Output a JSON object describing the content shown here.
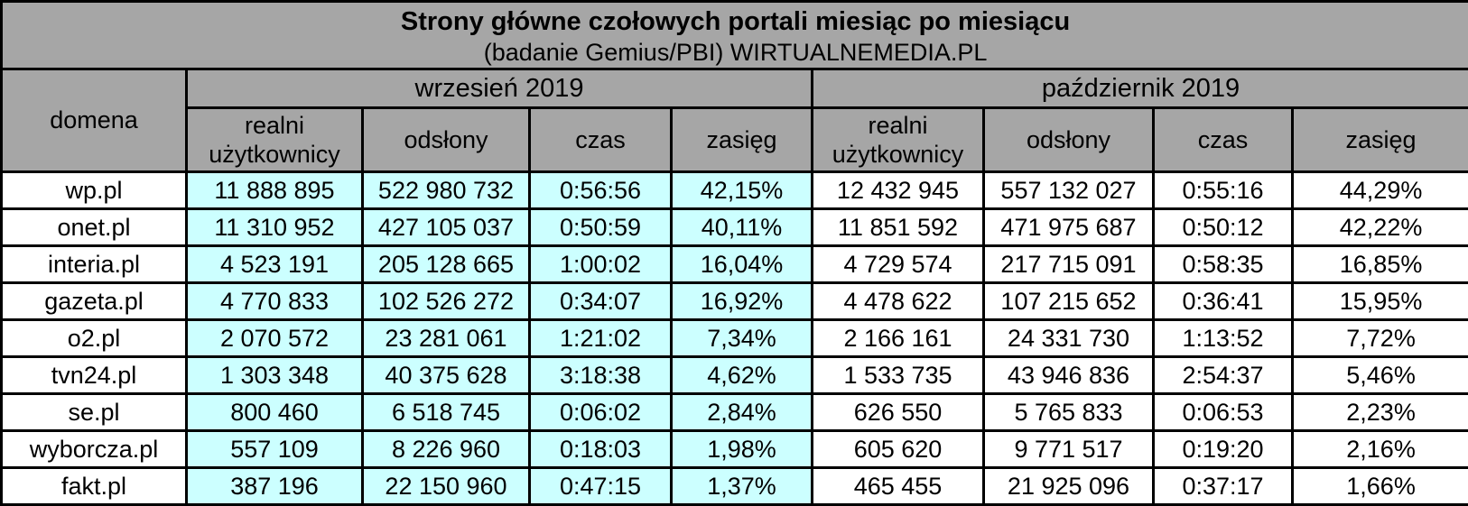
{
  "chart_data": {
    "type": "table",
    "title": "Strony główne czołowych portali miesiąc po miesiącu",
    "subtitle": "(badanie Gemius/PBI) WIRTUALNEMEDIA.PL",
    "domain_column_header": "domena",
    "column_groups": [
      {
        "label": "wrzesień 2019",
        "columns": [
          "realni użytkownicy",
          "odsłony",
          "czas",
          "zasięg"
        ]
      },
      {
        "label": "październik 2019",
        "columns": [
          "realni użytkownicy",
          "odsłony",
          "czas",
          "zasięg"
        ]
      }
    ],
    "rows": [
      {
        "domena": "wp.pl",
        "wrzesien": [
          "11 888 895",
          "522 980 732",
          "0:56:56",
          "42,15%"
        ],
        "pazdziernik": [
          "12 432 945",
          "557 132 027",
          "0:55:16",
          "44,29%"
        ]
      },
      {
        "domena": "onet.pl",
        "wrzesien": [
          "11 310 952",
          "427 105 037",
          "0:50:59",
          "40,11%"
        ],
        "pazdziernik": [
          "11 851 592",
          "471 975 687",
          "0:50:12",
          "42,22%"
        ]
      },
      {
        "domena": "interia.pl",
        "wrzesien": [
          "4 523 191",
          "205 128 665",
          "1:00:02",
          "16,04%"
        ],
        "pazdziernik": [
          "4 729 574",
          "217 715 091",
          "0:58:35",
          "16,85%"
        ]
      },
      {
        "domena": "gazeta.pl",
        "wrzesien": [
          "4 770 833",
          "102 526 272",
          "0:34:07",
          "16,92%"
        ],
        "pazdziernik": [
          "4 478 622",
          "107 215 652",
          "0:36:41",
          "15,95%"
        ]
      },
      {
        "domena": "o2.pl",
        "wrzesien": [
          "2 070 572",
          "23 281 061",
          "1:21:02",
          "7,34%"
        ],
        "pazdziernik": [
          "2 166 161",
          "24 331 730",
          "1:13:52",
          "7,72%"
        ]
      },
      {
        "domena": "tvn24.pl",
        "wrzesien": [
          "1 303 348",
          "40 375 628",
          "3:18:38",
          "4,62%"
        ],
        "pazdziernik": [
          "1 533 735",
          "43 946 836",
          "2:54:37",
          "5,46%"
        ]
      },
      {
        "domena": "se.pl",
        "wrzesien": [
          "800 460",
          "6 518 745",
          "0:06:02",
          "2,84%"
        ],
        "pazdziernik": [
          "626 550",
          "5 765 833",
          "0:06:53",
          "2,23%"
        ]
      },
      {
        "domena": "wyborcza.pl",
        "wrzesien": [
          "557 109",
          "8 226 960",
          "0:18:03",
          "1,98%"
        ],
        "pazdziernik": [
          "605 620",
          "9 771 517",
          "0:19:20",
          "2,16%"
        ]
      },
      {
        "domena": "fakt.pl",
        "wrzesien": [
          "387 196",
          "22 150 960",
          "0:47:15",
          "1,37%"
        ],
        "pazdziernik": [
          "465 455",
          "21 925 096",
          "0:37:17",
          "1,66%"
        ]
      }
    ]
  },
  "colors": {
    "header_bg": "#a6a6a6",
    "wrzesien_cell_bg": "#ccffff",
    "pazdziernik_cell_bg": "#ffffff",
    "border": "#000000",
    "text": "#000000"
  }
}
